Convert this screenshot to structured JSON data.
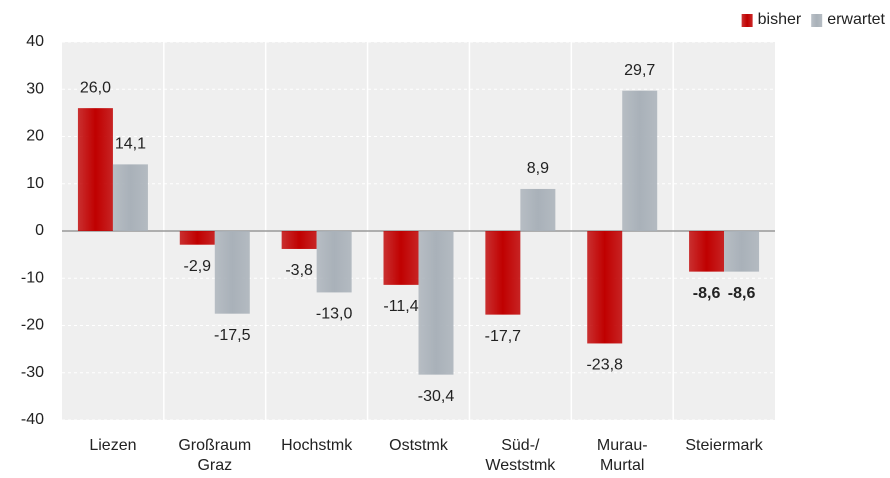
{
  "chart_data": {
    "type": "bar",
    "categories": [
      "Liezen",
      "Großraum\nGraz",
      "Hochstmk",
      "Oststmk",
      "Süd-/\nWeststmk",
      "Murau-\nMurtal",
      "Steiermark"
    ],
    "series": [
      {
        "name": "bisher",
        "color": "#c00000",
        "values": [
          26.0,
          -2.9,
          -3.8,
          -11.4,
          -17.7,
          -23.8,
          -8.6
        ],
        "value_labels": [
          "26,0",
          "-2,9",
          "-3,8",
          "-11,4",
          "-17,7",
          "-23,8",
          "-8,6"
        ]
      },
      {
        "name": "erwartet",
        "color": "#a9b1b9",
        "values": [
          14.1,
          -17.5,
          -13.0,
          -30.4,
          8.9,
          29.7,
          -8.6
        ],
        "value_labels": [
          "14,1",
          "-17,5",
          "-13,0",
          "-30,4",
          "8,9",
          "29,7",
          "-8,6"
        ]
      }
    ],
    "ylim": [
      -40,
      40
    ],
    "yticks": [
      -40,
      -30,
      -20,
      -10,
      0,
      10,
      20,
      30,
      40
    ],
    "grid": true,
    "legend": "top-right"
  }
}
